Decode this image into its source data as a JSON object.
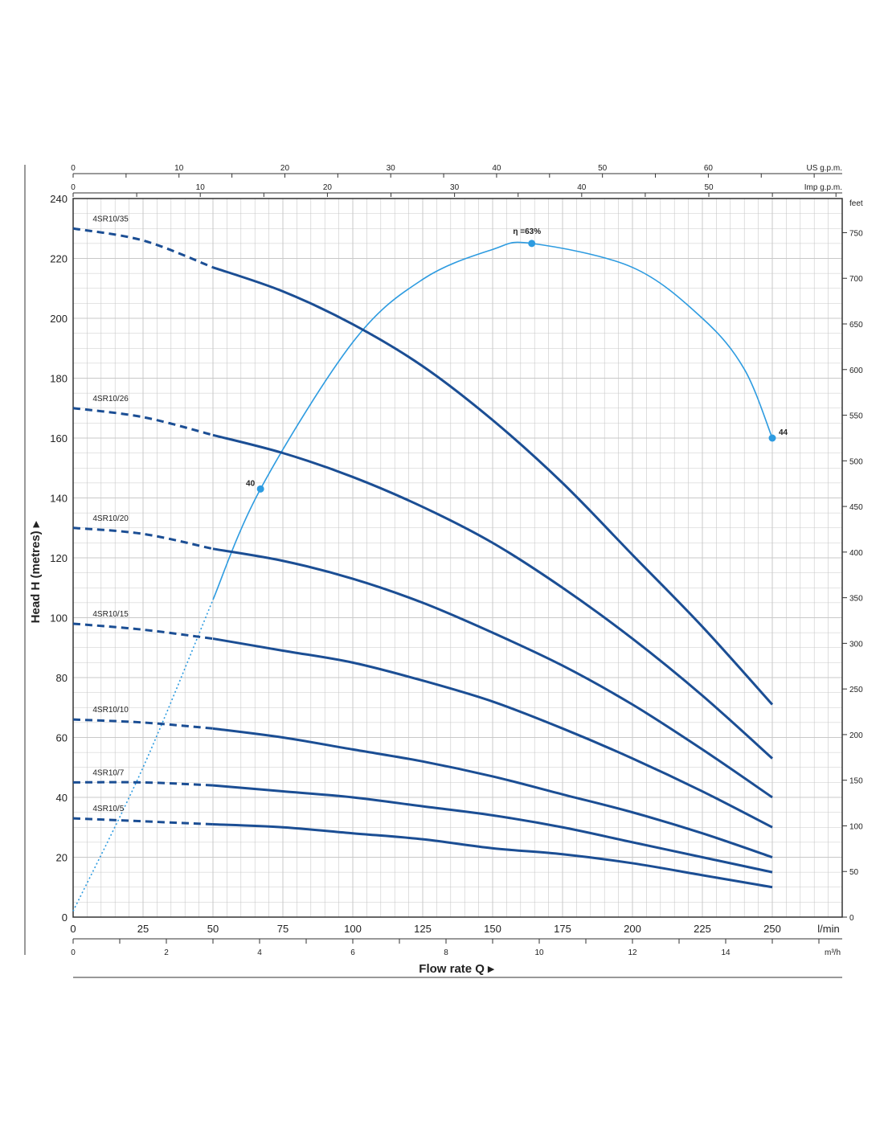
{
  "chart_data": {
    "type": "line",
    "axes": {
      "x_primary": {
        "label": "Flow rate Q",
        "unit": "l/min",
        "ticks": [
          "0",
          "25",
          "50",
          "75",
          "100",
          "125",
          "150",
          "175",
          "200",
          "225",
          "250"
        ],
        "range": [
          0,
          275
        ]
      },
      "x_m3h": {
        "unit": "m³/h",
        "ticks": [
          "0",
          "2",
          "4",
          "6",
          "8",
          "10",
          "12",
          "14"
        ]
      },
      "x_us_gpm": {
        "unit": "US g.p.m.",
        "ticks": [
          "0",
          "10",
          "20",
          "30",
          "40",
          "50",
          "60"
        ]
      },
      "x_imp_gpm": {
        "unit": "Imp g.p.m.",
        "ticks": [
          "0",
          "10",
          "20",
          "30",
          "40",
          "50"
        ]
      },
      "y_primary": {
        "label": "Head H (metres)",
        "ticks": [
          "0",
          "20",
          "40",
          "60",
          "80",
          "100",
          "120",
          "140",
          "160",
          "180",
          "200",
          "220",
          "240"
        ],
        "range": [
          0,
          240
        ]
      },
      "y_feet": {
        "unit": "feet",
        "ticks": [
          "0",
          "50",
          "100",
          "150",
          "200",
          "250",
          "300",
          "350",
          "400",
          "450",
          "500",
          "550",
          "600",
          "650",
          "700",
          "750"
        ]
      }
    },
    "grid": true,
    "series": [
      {
        "name": "4SR10/35",
        "points": [
          [
            0,
            230
          ],
          [
            25,
            226
          ],
          [
            50,
            217
          ],
          [
            75,
            209
          ],
          [
            100,
            198
          ],
          [
            125,
            184
          ],
          [
            150,
            166
          ],
          [
            175,
            145
          ],
          [
            200,
            121
          ],
          [
            225,
            97
          ],
          [
            250,
            71
          ]
        ]
      },
      {
        "name": "4SR10/26",
        "points": [
          [
            0,
            170
          ],
          [
            25,
            167
          ],
          [
            50,
            161
          ],
          [
            75,
            155
          ],
          [
            100,
            147
          ],
          [
            125,
            137
          ],
          [
            150,
            125
          ],
          [
            175,
            110
          ],
          [
            200,
            93
          ],
          [
            225,
            74
          ],
          [
            250,
            53
          ]
        ]
      },
      {
        "name": "4SR10/20",
        "points": [
          [
            0,
            130
          ],
          [
            25,
            128
          ],
          [
            50,
            123
          ],
          [
            75,
            119
          ],
          [
            100,
            113
          ],
          [
            125,
            105
          ],
          [
            150,
            95
          ],
          [
            175,
            84
          ],
          [
            200,
            71
          ],
          [
            225,
            56
          ],
          [
            250,
            40
          ]
        ]
      },
      {
        "name": "4SR10/15",
        "points": [
          [
            0,
            98
          ],
          [
            25,
            96
          ],
          [
            50,
            93
          ],
          [
            75,
            89
          ],
          [
            100,
            85
          ],
          [
            125,
            79
          ],
          [
            150,
            72
          ],
          [
            175,
            63
          ],
          [
            200,
            53
          ],
          [
            225,
            42
          ],
          [
            250,
            30
          ]
        ]
      },
      {
        "name": "4SR10/10",
        "points": [
          [
            0,
            66
          ],
          [
            25,
            65
          ],
          [
            50,
            63
          ],
          [
            75,
            60
          ],
          [
            100,
            56
          ],
          [
            125,
            52
          ],
          [
            150,
            47
          ],
          [
            175,
            41
          ],
          [
            200,
            35
          ],
          [
            225,
            28
          ],
          [
            250,
            20
          ]
        ]
      },
      {
        "name": "4SR10/7",
        "points": [
          [
            0,
            45
          ],
          [
            25,
            45
          ],
          [
            50,
            44
          ],
          [
            75,
            42
          ],
          [
            100,
            40
          ],
          [
            125,
            37
          ],
          [
            150,
            34
          ],
          [
            175,
            30
          ],
          [
            200,
            25
          ],
          [
            225,
            20
          ],
          [
            250,
            15
          ]
        ]
      },
      {
        "name": "4SR10/5",
        "points": [
          [
            0,
            33
          ],
          [
            25,
            32
          ],
          [
            50,
            31
          ],
          [
            75,
            30
          ],
          [
            100,
            28
          ],
          [
            125,
            26
          ],
          [
            150,
            23
          ],
          [
            175,
            21
          ],
          [
            200,
            18
          ],
          [
            225,
            14
          ],
          [
            250,
            10
          ]
        ]
      }
    ],
    "dashed_until_x": 50,
    "efficiency_curve": {
      "points": [
        [
          0,
          2
        ],
        [
          25,
          50
        ],
        [
          50,
          106
        ],
        [
          67,
          143
        ],
        [
          100,
          192
        ],
        [
          125,
          213
        ],
        [
          150,
          223
        ],
        [
          164,
          225
        ],
        [
          200,
          217
        ],
        [
          225,
          200
        ],
        [
          240,
          183
        ],
        [
          250,
          160
        ]
      ],
      "dotted_until_x": 50,
      "markers": [
        {
          "x": 67,
          "y": 143,
          "label": "40"
        },
        {
          "x": 164,
          "y": 225,
          "label": "η =63%"
        },
        {
          "x": 250,
          "y": 160,
          "label": "44"
        }
      ]
    },
    "colors": {
      "pump_curve": "#1b4e94",
      "efficiency": "#2d9be0",
      "grid": "#c8c8c8",
      "axis": "#333333"
    }
  }
}
